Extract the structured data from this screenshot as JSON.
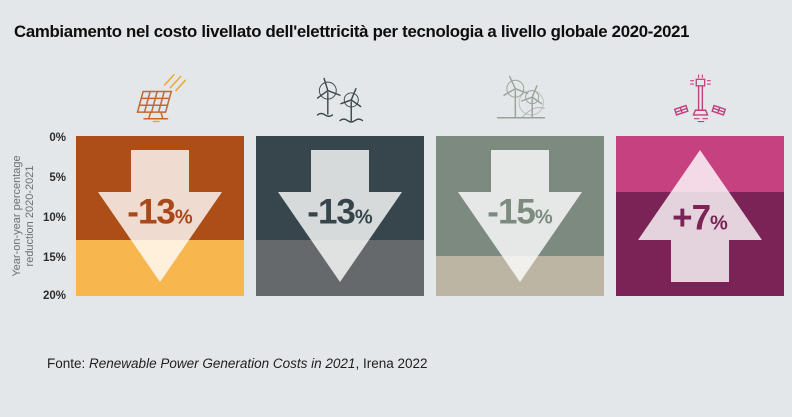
{
  "title": "Cambiamento nel costo livellato dell'elettricità per tecnologia a livello globale 2020-2021",
  "y_axis": {
    "label_line1": "Year-on-year percentage",
    "label_line2": "reduction 2020-2021",
    "ticks": [
      "0%",
      "5%",
      "10%",
      "15%",
      "20%"
    ]
  },
  "panels": [
    {
      "technology": "solar-photovoltaic",
      "icon": "solar-panel-icon",
      "direction": "down",
      "change_percent": -13,
      "value": "-13",
      "percent_sign": "%",
      "top_color": "#ad4d18",
      "bottom_color": "#f8b64e",
      "text_color": "#a8481b",
      "icon_color": "#c2692f"
    },
    {
      "technology": "offshore-wind",
      "icon": "offshore-wind-turbines-icon",
      "direction": "down",
      "change_percent": -13,
      "value": "-13",
      "percent_sign": "%",
      "top_color": "#37464d",
      "bottom_color": "#65696b",
      "text_color": "#36454c",
      "icon_color": "#3c474c"
    },
    {
      "technology": "onshore-wind",
      "icon": "onshore-wind-turbines-icon",
      "direction": "down",
      "change_percent": -15,
      "value": "-15",
      "percent_sign": "%",
      "top_color": "#7c8a80",
      "bottom_color": "#bcb5a4",
      "text_color": "#7c8a80",
      "icon_color": "#99a399"
    },
    {
      "technology": "concentrating-solar-power",
      "icon": "csp-tower-icon",
      "direction": "up",
      "change_percent": 7,
      "value": "+7",
      "percent_sign": "%",
      "top_color": "#c64180",
      "bottom_color": "#7b2357",
      "text_color": "#7b2357",
      "icon_color": "#c2407e"
    }
  ],
  "arrow": {
    "fill": "#ffffff",
    "opacity": 0.8
  },
  "source": {
    "prefix": "Fonte: ",
    "italic": "Renewable Power Generation Costs in 2021",
    "suffix": ", Irena 2022"
  },
  "chart_data": {
    "type": "bar",
    "title": "Cambiamento nel costo livellato dell'elettricità per tecnologia a livello globale 2020-2021",
    "categories": [
      "Solar photovoltaic",
      "Offshore wind",
      "Onshore wind",
      "Concentrating solar power"
    ],
    "values": [
      -13,
      -13,
      -15,
      7
    ],
    "unit": "%",
    "ylabel": "Year-on-year percentage reduction 2020-2021",
    "ylim": [
      0,
      20
    ],
    "yticks": [
      "0%",
      "5%",
      "10%",
      "15%",
      "20%"
    ],
    "grid": false,
    "legend": false,
    "source": "Fonte: Renewable Power Generation Costs in 2021, Irena 2022"
  }
}
